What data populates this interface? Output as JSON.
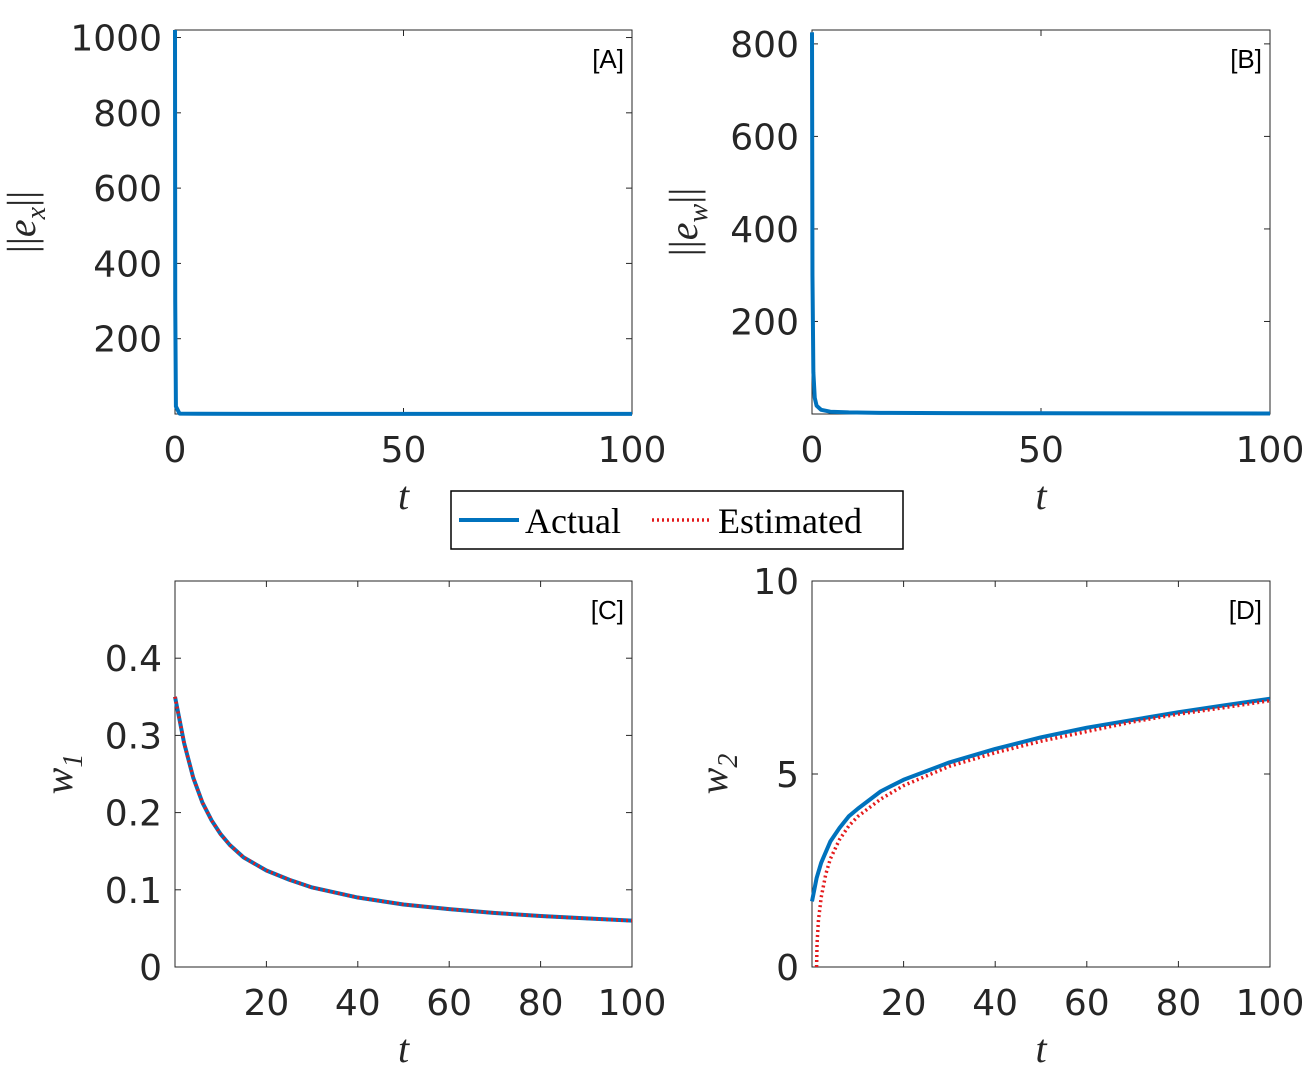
{
  "legend": {
    "entries": [
      "Actual",
      "Estimated"
    ],
    "colors": [
      "#0072BD",
      "#E41A1C"
    ]
  },
  "chart_data": [
    {
      "type": "line",
      "panel": "[A]",
      "xlabel": "t",
      "ylabel": "||e_x||",
      "ylabel_parts": {
        "bar_left": "||",
        "var": "e",
        "sub": "x",
        "bar_right": "||"
      },
      "xlim": [
        0,
        100
      ],
      "ylim": [
        0,
        1020
      ],
      "xticks": [
        0,
        50,
        100
      ],
      "yticks": [
        200,
        400,
        600,
        800,
        1000
      ],
      "grid": false,
      "series": [
        {
          "name": "Actual",
          "color": "#0072BD",
          "style": "solid",
          "x": [
            0,
            0.05,
            0.2,
            1,
            5,
            20,
            50,
            100
          ],
          "y": [
            1020,
            300,
            20,
            1,
            0.5,
            0.3,
            0.2,
            0.2
          ]
        }
      ]
    },
    {
      "type": "line",
      "panel": "[B]",
      "xlabel": "t",
      "ylabel": "||e_w||",
      "ylabel_parts": {
        "bar_left": "||",
        "var": "e",
        "sub": "w",
        "bar_right": "||"
      },
      "xlim": [
        0,
        100
      ],
      "ylim": [
        0,
        830
      ],
      "xticks": [
        0,
        50,
        100
      ],
      "yticks": [
        200,
        400,
        600,
        800
      ],
      "grid": false,
      "series": [
        {
          "name": "Actual",
          "color": "#0072BD",
          "style": "solid",
          "x": [
            0,
            0.1,
            0.3,
            0.6,
            1,
            2,
            4,
            8,
            15,
            30,
            50,
            100
          ],
          "y": [
            825,
            300,
            90,
            35,
            18,
            9,
            5,
            3.5,
            2.5,
            2,
            1.5,
            1
          ]
        }
      ]
    },
    {
      "type": "line",
      "panel": "[C]",
      "xlabel": "t",
      "ylabel": "w_1",
      "ylabel_parts": {
        "bar_left": "",
        "var": "w",
        "sub": "1",
        "bar_right": ""
      },
      "xlim": [
        0,
        100
      ],
      "ylim": [
        0,
        0.5
      ],
      "xticks": [
        20,
        40,
        60,
        80,
        100
      ],
      "yticks": [
        0,
        0.1,
        0.2,
        0.3,
        0.4
      ],
      "grid": false,
      "series": [
        {
          "name": "Actual",
          "color": "#0072BD",
          "style": "solid",
          "x": [
            0,
            2,
            4,
            6,
            8,
            10,
            12,
            15,
            20,
            25,
            30,
            40,
            50,
            60,
            70,
            80,
            90,
            100
          ],
          "y": [
            0.35,
            0.29,
            0.245,
            0.213,
            0.19,
            0.172,
            0.158,
            0.142,
            0.125,
            0.113,
            0.103,
            0.09,
            0.081,
            0.075,
            0.07,
            0.066,
            0.063,
            0.06
          ]
        },
        {
          "name": "Estimated",
          "color": "#E41A1C",
          "style": "dotted",
          "x": [
            0,
            2,
            4,
            6,
            8,
            10,
            12,
            15,
            20,
            25,
            30,
            40,
            50,
            60,
            70,
            80,
            90,
            100
          ],
          "y": [
            0.35,
            0.29,
            0.245,
            0.213,
            0.19,
            0.172,
            0.158,
            0.142,
            0.125,
            0.113,
            0.103,
            0.09,
            0.081,
            0.075,
            0.07,
            0.066,
            0.063,
            0.06
          ]
        }
      ]
    },
    {
      "type": "line",
      "panel": "[D]",
      "xlabel": "t",
      "ylabel": "w_2",
      "ylabel_parts": {
        "bar_left": "",
        "var": "w",
        "sub": "2",
        "bar_right": ""
      },
      "xlim": [
        0,
        100
      ],
      "ylim": [
        0,
        10
      ],
      "xticks": [
        20,
        40,
        60,
        80,
        100
      ],
      "yticks": [
        0,
        5,
        10
      ],
      "grid": false,
      "series": [
        {
          "name": "Actual",
          "color": "#0072BD",
          "style": "solid",
          "x": [
            0,
            1,
            2,
            4,
            6,
            8,
            10,
            15,
            20,
            30,
            40,
            50,
            60,
            70,
            80,
            90,
            100
          ],
          "y": [
            1.7,
            2.3,
            2.7,
            3.25,
            3.6,
            3.9,
            4.1,
            4.55,
            4.85,
            5.3,
            5.65,
            5.95,
            6.2,
            6.4,
            6.6,
            6.78,
            6.95
          ]
        },
        {
          "name": "Estimated",
          "color": "#E41A1C",
          "style": "dotted",
          "x": [
            1,
            1.1,
            1.4,
            2,
            3,
            4,
            6,
            8,
            10,
            15,
            20,
            30,
            40,
            50,
            60,
            70,
            80,
            90,
            100
          ],
          "y": [
            0,
            0.6,
            1.2,
            1.8,
            2.4,
            2.8,
            3.3,
            3.65,
            3.9,
            4.35,
            4.7,
            5.2,
            5.55,
            5.85,
            6.1,
            6.35,
            6.55,
            6.72,
            6.9
          ]
        }
      ]
    }
  ]
}
